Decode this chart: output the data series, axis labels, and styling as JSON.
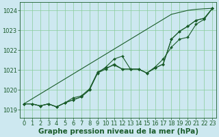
{
  "background_color": "#cde8f0",
  "grid_color": "#88cc99",
  "line_color": "#1a5c2a",
  "xlabel": "Graphe pression niveau de la mer (hPa)",
  "ylim": [
    1018.6,
    1024.4
  ],
  "xlim": [
    -0.5,
    23.5
  ],
  "yticks": [
    1019,
    1020,
    1021,
    1022,
    1023,
    1024
  ],
  "xticks": [
    0,
    1,
    2,
    3,
    4,
    5,
    6,
    7,
    8,
    9,
    10,
    11,
    12,
    13,
    14,
    15,
    16,
    17,
    18,
    19,
    20,
    21,
    22,
    23
  ],
  "series1": [
    1019.3,
    1019.55,
    1019.8,
    1020.05,
    1020.3,
    1020.55,
    1020.8,
    1021.05,
    1021.3,
    1021.55,
    1021.8,
    1022.05,
    1022.3,
    1022.55,
    1022.8,
    1023.05,
    1023.3,
    1023.55,
    1023.8,
    1023.9,
    1024.0,
    1024.05,
    1024.08,
    1024.1
  ],
  "series2": [
    1019.3,
    1019.3,
    1019.2,
    1019.3,
    1019.15,
    1019.35,
    1019.5,
    1019.65,
    1020.0,
    1020.85,
    1021.15,
    1021.55,
    1021.7,
    1021.05,
    1021.05,
    1020.85,
    1021.15,
    1021.55,
    1022.15,
    1022.55,
    1022.65,
    1023.3,
    1023.55,
    1024.1
  ],
  "series3": [
    1019.3,
    1019.3,
    1019.2,
    1019.3,
    1019.15,
    1019.35,
    1019.5,
    1019.65,
    1020.0,
    1020.85,
    1021.05,
    1021.3,
    1021.05,
    1021.05,
    1021.05,
    1020.85,
    1021.1,
    1021.3,
    1022.55,
    1022.95,
    1023.2,
    1023.5,
    1023.6,
    1024.1
  ],
  "series4": [
    1019.3,
    1019.3,
    1019.2,
    1019.3,
    1019.15,
    1019.35,
    1019.6,
    1019.7,
    1020.05,
    1020.9,
    1021.1,
    1021.25,
    1021.05,
    1021.05,
    1021.05,
    1020.85,
    1021.1,
    1021.3,
    1022.55,
    1022.95,
    1023.2,
    1023.5,
    1023.6,
    1024.1
  ],
  "marker": "D",
  "marker_size": 2.0,
  "line_width": 0.8,
  "xlabel_fontsize": 7.5,
  "tick_fontsize": 6.0
}
